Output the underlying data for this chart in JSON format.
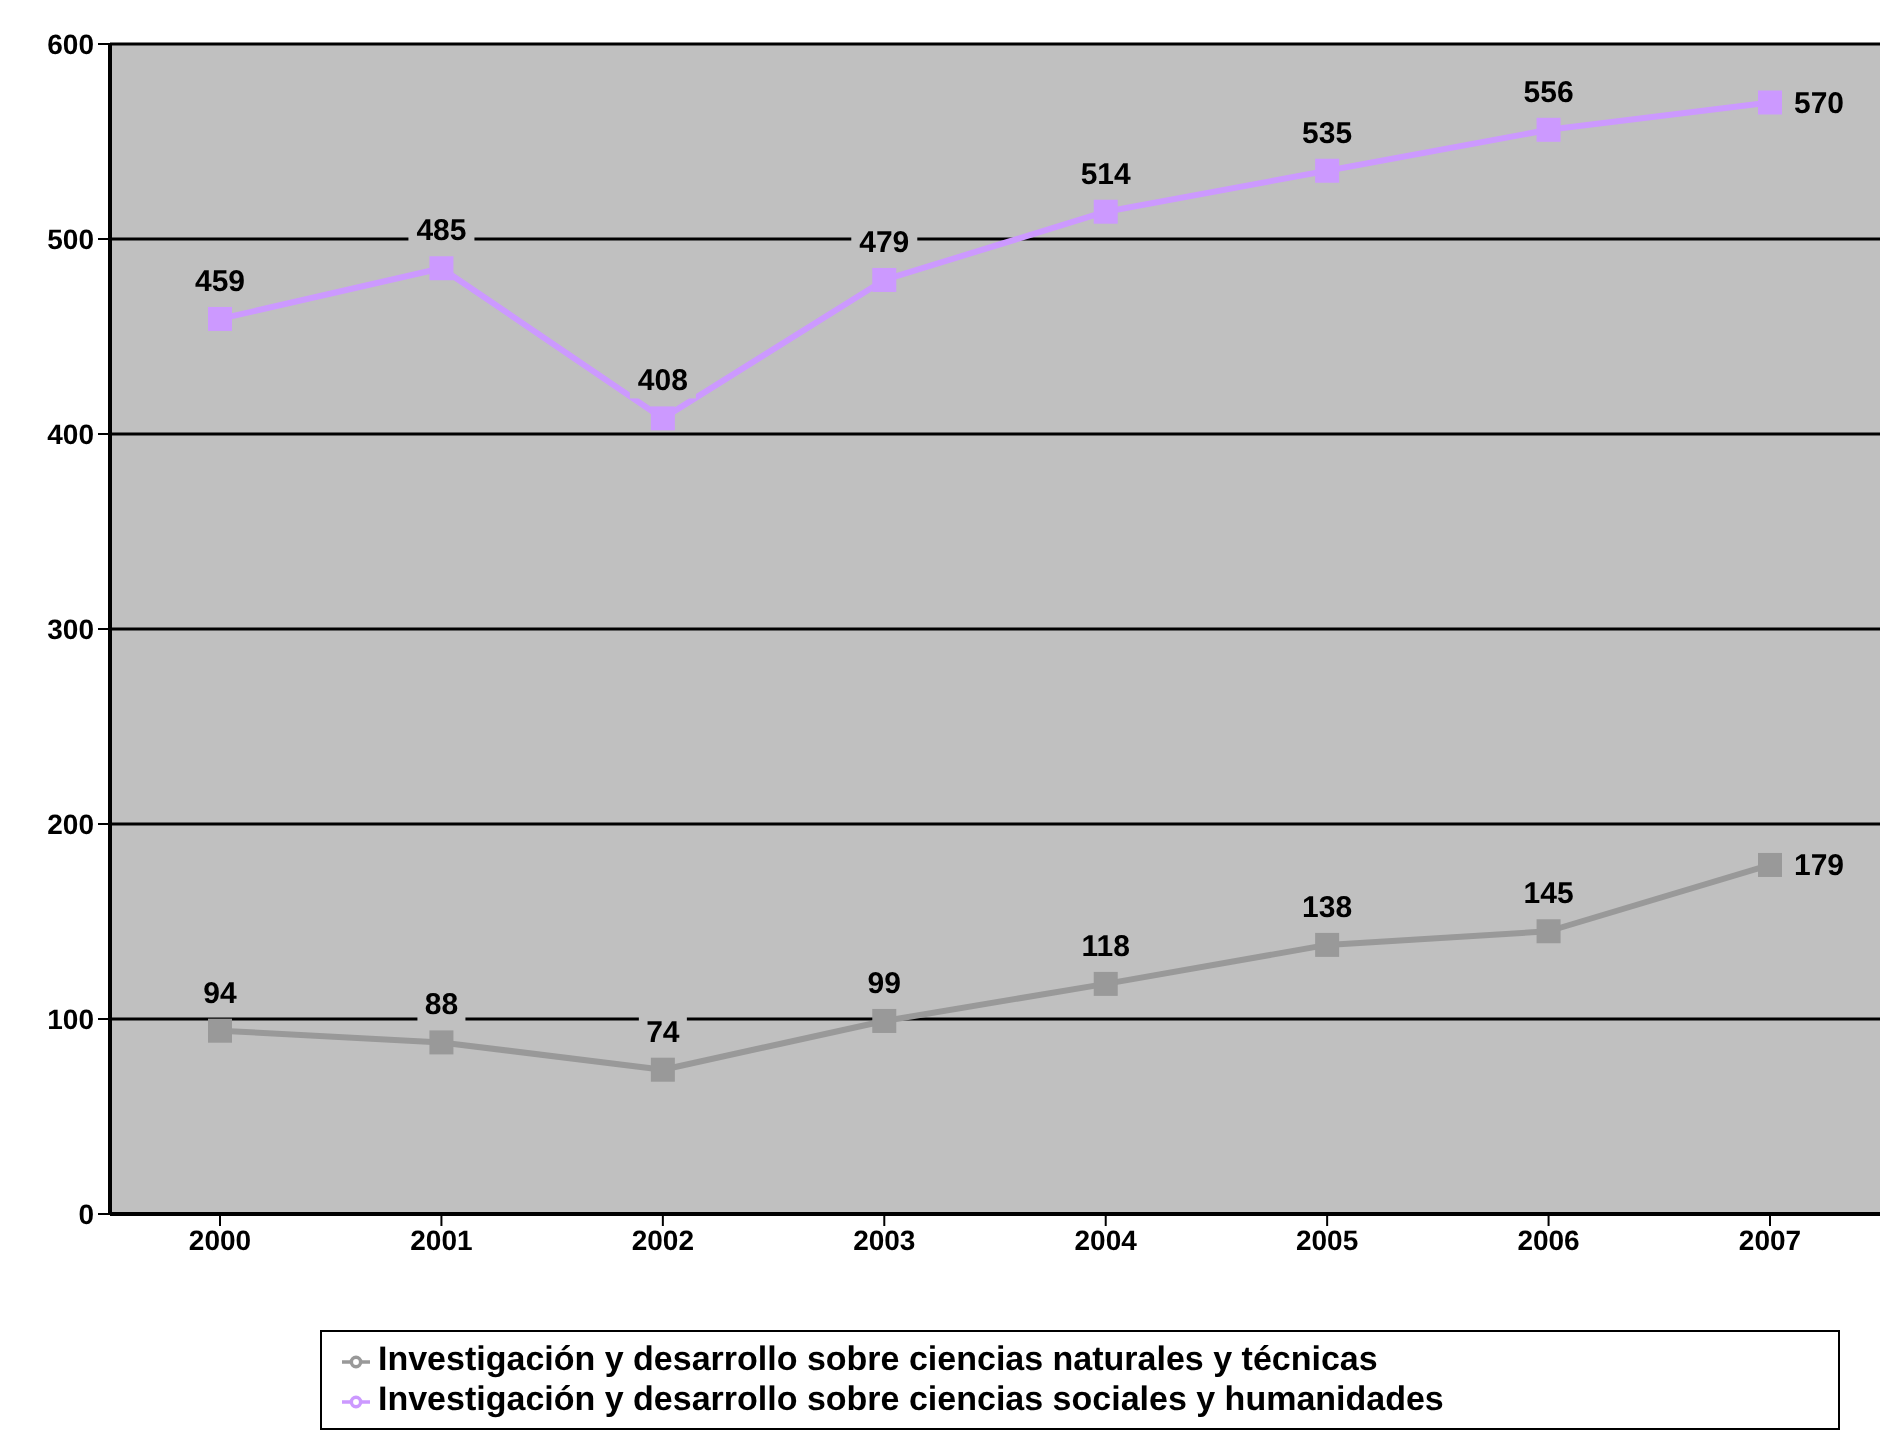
{
  "chart_data": {
    "type": "line",
    "categories": [
      "2000",
      "2001",
      "2002",
      "2003",
      "2004",
      "2005",
      "2006",
      "2007"
    ],
    "series": [
      {
        "name": "Investigación y desarrollo sobre ciencias naturales y técnicas",
        "color": "#999999",
        "values": [
          94,
          88,
          74,
          99,
          118,
          138,
          145,
          179
        ]
      },
      {
        "name": "Investigación y desarrollo sobre ciencias sociales y humanidades",
        "color": "#cc99ff",
        "values": [
          459,
          485,
          408,
          479,
          514,
          535,
          556,
          570
        ]
      }
    ],
    "ylim": [
      0,
      600
    ],
    "yticks": [
      0,
      100,
      200,
      300,
      400,
      500,
      600
    ],
    "grid": "y",
    "legend": "bottom",
    "marker": "square",
    "line_style": "solid",
    "data_labels": true
  }
}
